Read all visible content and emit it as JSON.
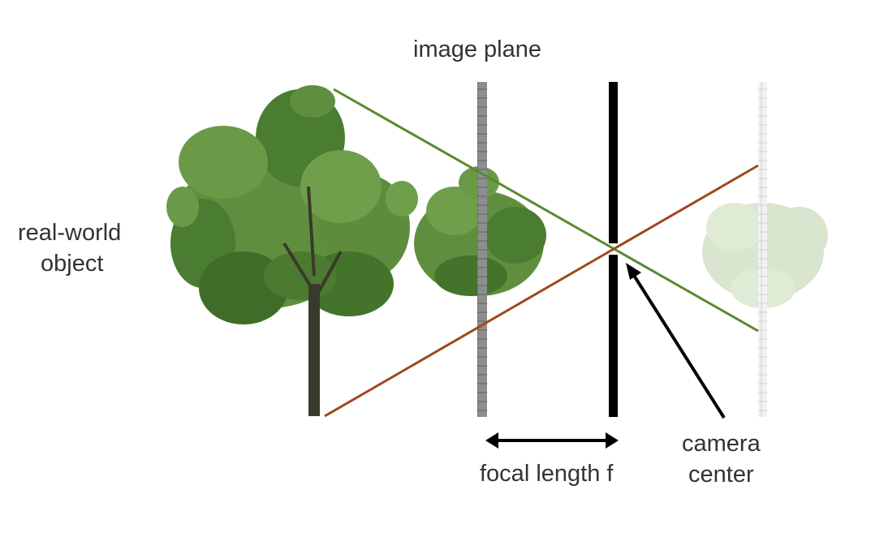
{
  "labels": {
    "image_plane": "image plane",
    "real_world_line1": "real-world",
    "real_world_line2": "object",
    "focal_length": "focal length f",
    "camera_line1": "camera",
    "camera_line2": "center"
  },
  "colors": {
    "green_ray": "#5a8a2c",
    "brown_ray": "#a0481c",
    "plate": "#000000",
    "image_plane": "#8e8e8e",
    "virtual_plane": "#d8d8d8",
    "foliage": "#4d7f33",
    "trunk": "#3a3a2c"
  },
  "icons": {
    "real_object": "tree-icon",
    "image": "small-tree-icon",
    "virtual_image": "faded-tree-icon",
    "dimension": "double-arrow-icon",
    "pointer": "arrow-icon"
  }
}
